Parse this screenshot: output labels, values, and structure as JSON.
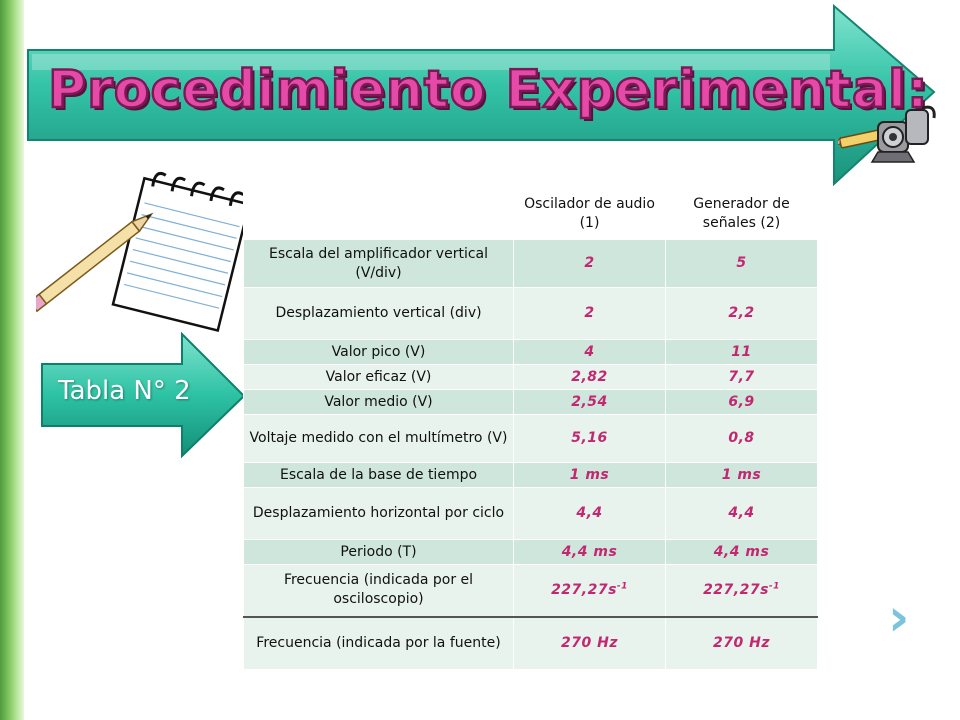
{
  "slide": {
    "title": "Procedimiento Experimental:",
    "tabla_label": "Tabla N° 2",
    "next_icon": "chevron-right-icon"
  },
  "colors": {
    "title_fill": "#e64aa8",
    "title_outline": "#7a1a55",
    "arrow_teal": "#24b89c",
    "row_dark": "#cfe6dc",
    "row_light": "#e8f3ee",
    "value_text": "#c2286f",
    "left_bar": "#5aa642"
  },
  "table": {
    "headers": {
      "col1": "Oscilador de audio (1)",
      "col2": "Generador de señales (2)"
    },
    "rows": [
      {
        "label": "Escala del amplificador vertical (V/div)",
        "v1": "2",
        "v2": "5"
      },
      {
        "label": "Desplazamiento vertical (div)",
        "v1": "2",
        "v2": "2,2"
      },
      {
        "label": "Valor pico (V)",
        "v1": "4",
        "v2": "11"
      },
      {
        "label": "Valor eficaz (V)",
        "v1": "2,82",
        "v2": "7,7"
      },
      {
        "label": "Valor medio (V)",
        "v1": "2,54",
        "v2": "6,9"
      },
      {
        "label": "Voltaje medido con el multímetro (V)",
        "v1": "5,16",
        "v2": "0,8"
      },
      {
        "label": "Escala de la base de tiempo",
        "v1": "1 ms",
        "v2": "1 ms"
      },
      {
        "label": "Desplazamiento horizontal por ciclo",
        "v1": "4,4",
        "v2": "4,4"
      },
      {
        "label": "Periodo (T)",
        "v1": "4,4 ms",
        "v2": "4,4 ms"
      },
      {
        "label": "Frecuencia (indicada por el osciloscopio)",
        "v1": "227,27s",
        "v1_sup": "-1",
        "v2": "227,27s",
        "v2_sup": "-1"
      },
      {
        "label": "Frecuencia (indicada por la fuente)",
        "v1": "270 Hz",
        "v2": "270 Hz"
      }
    ]
  }
}
